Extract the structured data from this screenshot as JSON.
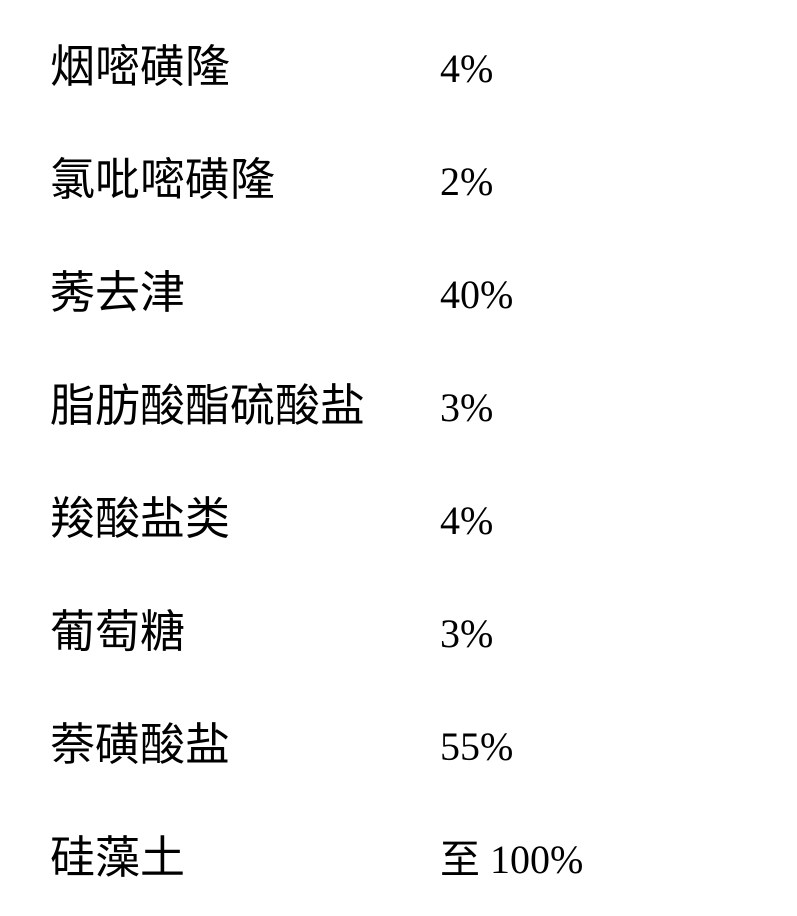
{
  "table": {
    "rows": [
      {
        "label": "烟嘧磺隆",
        "value": "4%"
      },
      {
        "label": "氯吡嘧磺隆",
        "value": "2%"
      },
      {
        "label": "莠去津",
        "value": "40%"
      },
      {
        "label": "脂肪酸酯硫酸盐",
        "value": "3%"
      },
      {
        "label": "羧酸盐类",
        "value": "4%"
      },
      {
        "label": "葡萄糖",
        "value": "3%"
      },
      {
        "label": "萘磺酸盐",
        "value": "55%"
      },
      {
        "label": "硅藻土",
        "value": "至 100%"
      }
    ],
    "font_size_label": 45,
    "font_size_value": 40,
    "text_color": "#000000",
    "background_color": "#ffffff",
    "label_column_width": 390,
    "row_spacing": 48
  }
}
